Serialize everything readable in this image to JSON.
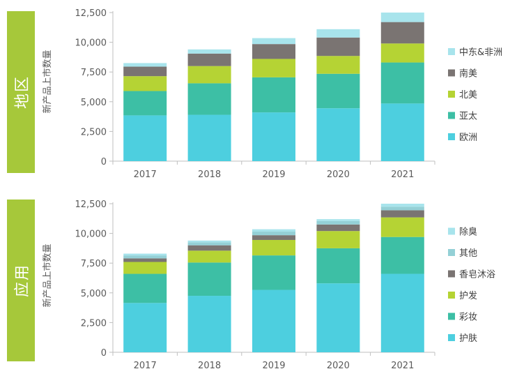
{
  "chart_data": [
    {
      "type": "bar",
      "stacked": true,
      "section_label": "地区",
      "ylabel": "新产品上市数量",
      "categories": [
        "2017",
        "2018",
        "2019",
        "2020",
        "2021"
      ],
      "ylim": [
        0,
        12500
      ],
      "yticks": [
        "0",
        "2,500",
        "5,000",
        "7,500",
        "10,000",
        "12,500"
      ],
      "legend_position": "right",
      "series": [
        {
          "name": "欧洲",
          "color": "#4dcfdf",
          "values": [
            3850,
            3900,
            4100,
            4450,
            4850
          ]
        },
        {
          "name": "亚太",
          "color": "#3dbfa5",
          "values": [
            2050,
            2650,
            2950,
            2900,
            3450
          ]
        },
        {
          "name": "北美",
          "color": "#b5d334",
          "values": [
            1250,
            1450,
            1550,
            1500,
            1600
          ]
        },
        {
          "name": "南美",
          "color": "#7a7472",
          "values": [
            800,
            1050,
            1250,
            1550,
            1800
          ]
        },
        {
          "name": "中东&非洲",
          "color": "#a8e4ec",
          "values": [
            300,
            350,
            500,
            700,
            800
          ]
        }
      ]
    },
    {
      "type": "bar",
      "stacked": true,
      "section_label": "应用",
      "ylabel": "新产品上市数量",
      "categories": [
        "2017",
        "2018",
        "2019",
        "2020",
        "2021"
      ],
      "ylim": [
        0,
        12500
      ],
      "yticks": [
        "0",
        "2,500",
        "5,000",
        "7,500",
        "10,000",
        "12,500"
      ],
      "legend_position": "right",
      "series": [
        {
          "name": "护肤",
          "color": "#4dcfdf",
          "values": [
            4150,
            4750,
            5250,
            5800,
            6600
          ]
        },
        {
          "name": "彩妆",
          "color": "#3dbfa5",
          "values": [
            2450,
            2800,
            2900,
            2950,
            3100
          ]
        },
        {
          "name": "护发",
          "color": "#b5d334",
          "values": [
            1000,
            1000,
            1300,
            1450,
            1650
          ]
        },
        {
          "name": "香皂沐浴",
          "color": "#7a7472",
          "values": [
            300,
            450,
            400,
            550,
            600
          ]
        },
        {
          "name": "其他",
          "color": "#94d0d6",
          "values": [
            250,
            250,
            300,
            300,
            300
          ]
        },
        {
          "name": "除臭",
          "color": "#a8e4ec",
          "values": [
            150,
            150,
            200,
            150,
            250
          ]
        }
      ]
    }
  ]
}
